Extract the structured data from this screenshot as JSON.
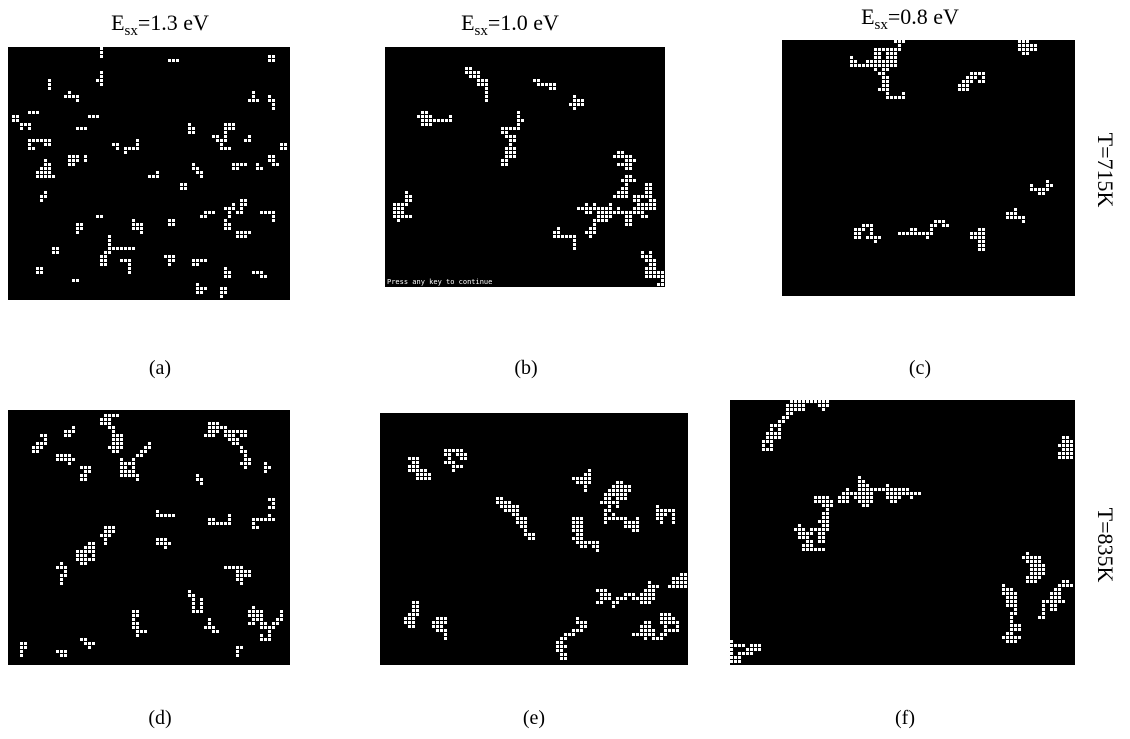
{
  "columns": [
    {
      "symbol": "E",
      "subscript": "sx",
      "value": "=1.3 eV"
    },
    {
      "symbol": "E",
      "subscript": "sx",
      "value": "=1.0 eV"
    },
    {
      "symbol": "E",
      "subscript": "sx",
      "value": "=0.8 eV"
    }
  ],
  "rows": [
    "T=715K",
    "T=835K"
  ],
  "panels": [
    {
      "label": "(a)"
    },
    {
      "label": "(b)",
      "console_text": "Press any key to continue"
    },
    {
      "label": "(c)"
    },
    {
      "label": "(d)"
    },
    {
      "label": "(e)"
    },
    {
      "label": "(f)"
    }
  ]
}
